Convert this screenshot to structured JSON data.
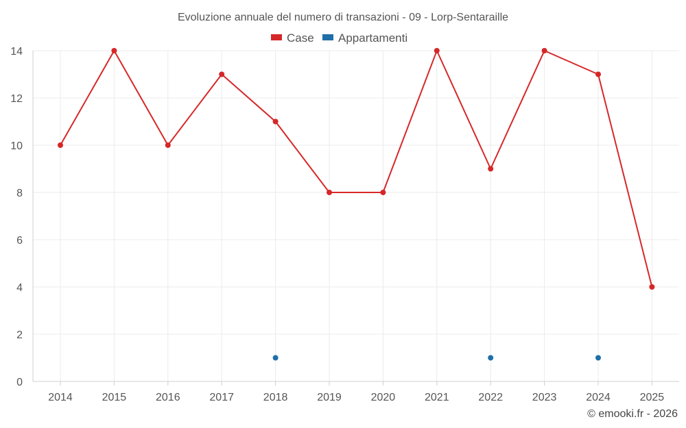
{
  "chart_data": {
    "type": "line",
    "title": "Evoluzione annuale del numero di transazioni - 09 - Lorp-Sentaraille",
    "categories": [
      "2014",
      "2015",
      "2016",
      "2017",
      "2018",
      "2019",
      "2020",
      "2021",
      "2022",
      "2023",
      "2024",
      "2025"
    ],
    "ylim": [
      0,
      14
    ],
    "yticks": [
      0,
      2,
      4,
      6,
      8,
      10,
      12,
      14
    ],
    "grid": true,
    "legend_position": "top-center",
    "series": [
      {
        "name": "Case",
        "color": "#d62728",
        "values": [
          10,
          14,
          10,
          13,
          11,
          8,
          8,
          14,
          9,
          14,
          13,
          4
        ],
        "line": true
      },
      {
        "name": "Appartamenti",
        "color": "#1f6fa8",
        "values": [
          null,
          null,
          null,
          null,
          1,
          null,
          null,
          null,
          1,
          null,
          1,
          null
        ],
        "line": false
      }
    ]
  },
  "credit": "© emooki.fr - 2026"
}
